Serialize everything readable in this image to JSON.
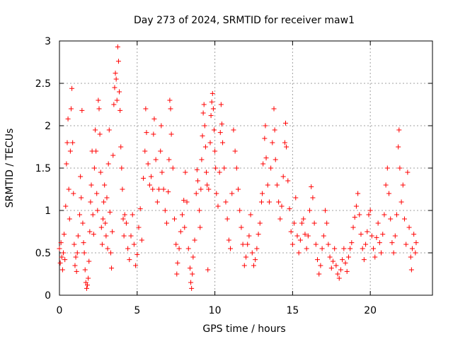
{
  "chart_data": {
    "type": "scatter",
    "title": "Day 273 of 2024, SRMTID for receiver maw1",
    "xlabel": "GPS time / hours",
    "ylabel": "SRMTID / TECUs",
    "xlim": [
      0,
      24
    ],
    "ylim": [
      0,
      3
    ],
    "xticks": [
      0,
      5,
      10,
      15,
      20
    ],
    "yticks": [
      0,
      0.5,
      1,
      1.5,
      2,
      2.5,
      3
    ],
    "xtick_labels": [
      "0",
      "5",
      "10",
      "15",
      "20"
    ],
    "ytick_labels": [
      "0",
      "0.5",
      "1",
      "1.5",
      "2",
      "2.5",
      "3"
    ],
    "grid": true,
    "marker": "+",
    "color": "#ff0000",
    "series": [
      {
        "name": "SRMTID",
        "points": [
          [
            0.0,
            0.55
          ],
          [
            0.05,
            0.38
          ],
          [
            0.1,
            0.62
          ],
          [
            0.15,
            0.45
          ],
          [
            0.2,
            0.3
          ],
          [
            0.25,
            0.5
          ],
          [
            0.3,
            0.72
          ],
          [
            0.35,
            0.42
          ],
          [
            0.4,
            1.05
          ],
          [
            0.45,
            1.55
          ],
          [
            0.5,
            1.8
          ],
          [
            0.55,
            2.08
          ],
          [
            0.6,
            1.25
          ],
          [
            0.65,
            0.9
          ],
          [
            0.7,
            1.7
          ],
          [
            0.75,
            2.2
          ],
          [
            0.8,
            2.44
          ],
          [
            0.85,
            1.8
          ],
          [
            0.9,
            1.2
          ],
          [
            0.95,
            0.6
          ],
          [
            1.0,
            0.35
          ],
          [
            1.05,
            0.45
          ],
          [
            1.1,
            0.28
          ],
          [
            1.15,
            0.5
          ],
          [
            1.2,
            0.7
          ],
          [
            1.3,
            0.95
          ],
          [
            1.35,
            1.4
          ],
          [
            1.4,
            1.15
          ],
          [
            1.45,
            2.18
          ],
          [
            1.5,
            0.85
          ],
          [
            1.55,
            0.62
          ],
          [
            1.6,
            0.5
          ],
          [
            1.65,
            0.3
          ],
          [
            1.7,
            0.15
          ],
          [
            1.75,
            0.08
          ],
          [
            1.8,
            0.12
          ],
          [
            1.85,
            0.2
          ],
          [
            1.9,
            0.4
          ],
          [
            1.95,
            0.75
          ],
          [
            2.0,
            1.1
          ],
          [
            2.05,
            1.3
          ],
          [
            2.1,
            1.7
          ],
          [
            2.15,
            0.95
          ],
          [
            2.2,
            0.72
          ],
          [
            2.25,
            1.5
          ],
          [
            2.3,
            1.95
          ],
          [
            2.35,
            1.7
          ],
          [
            2.4,
            1.2
          ],
          [
            2.45,
            1.0
          ],
          [
            2.5,
            2.3
          ],
          [
            2.55,
            2.2
          ],
          [
            2.6,
            1.9
          ],
          [
            2.65,
            1.45
          ],
          [
            2.7,
            0.8
          ],
          [
            2.75,
            0.6
          ],
          [
            2.8,
            0.9
          ],
          [
            2.85,
            1.1
          ],
          [
            2.9,
            1.3
          ],
          [
            2.95,
            0.85
          ],
          [
            3.0,
            0.7
          ],
          [
            3.05,
            1.15
          ],
          [
            3.1,
            0.55
          ],
          [
            3.15,
            1.55
          ],
          [
            3.2,
            1.95
          ],
          [
            3.25,
            0.98
          ],
          [
            3.3,
            0.5
          ],
          [
            3.35,
            0.32
          ],
          [
            3.4,
            0.75
          ],
          [
            3.45,
            1.65
          ],
          [
            3.5,
            2.25
          ],
          [
            3.55,
            2.45
          ],
          [
            3.6,
            2.62
          ],
          [
            3.65,
            2.55
          ],
          [
            3.7,
            2.3
          ],
          [
            3.75,
            2.93
          ],
          [
            3.8,
            2.76
          ],
          [
            3.85,
            2.4
          ],
          [
            3.9,
            2.18
          ],
          [
            3.95,
            1.75
          ],
          [
            4.0,
            1.5
          ],
          [
            4.05,
            1.25
          ],
          [
            4.1,
            0.9
          ],
          [
            4.15,
            0.7
          ],
          [
            4.2,
            0.95
          ],
          [
            4.3,
            0.85
          ],
          [
            4.4,
            0.55
          ],
          [
            4.5,
            0.42
          ],
          [
            4.6,
            0.7
          ],
          [
            4.7,
            0.95
          ],
          [
            4.8,
            0.6
          ],
          [
            4.9,
            0.35
          ],
          [
            5.0,
            0.48
          ],
          [
            5.1,
            0.8
          ],
          [
            5.2,
            1.02
          ],
          [
            5.3,
            0.65
          ],
          [
            5.4,
            1.38
          ],
          [
            5.5,
            1.7
          ],
          [
            5.55,
            2.2
          ],
          [
            5.6,
            1.92
          ],
          [
            5.7,
            1.55
          ],
          [
            5.8,
            1.3
          ],
          [
            5.9,
            1.4
          ],
          [
            6.0,
            1.25
          ],
          [
            6.05,
            1.9
          ],
          [
            6.1,
            2.08
          ],
          [
            6.2,
            1.6
          ],
          [
            6.3,
            1.1
          ],
          [
            6.4,
            1.25
          ],
          [
            6.5,
            1.7
          ],
          [
            6.55,
            2.0
          ],
          [
            6.6,
            1.45
          ],
          [
            6.7,
            1.25
          ],
          [
            6.8,
            1.0
          ],
          [
            6.9,
            0.85
          ],
          [
            7.0,
            1.22
          ],
          [
            7.05,
            1.6
          ],
          [
            7.1,
            2.3
          ],
          [
            7.15,
            2.2
          ],
          [
            7.2,
            1.9
          ],
          [
            7.3,
            1.5
          ],
          [
            7.4,
            0.9
          ],
          [
            7.5,
            0.6
          ],
          [
            7.55,
            0.25
          ],
          [
            7.6,
            0.38
          ],
          [
            7.7,
            0.55
          ],
          [
            7.8,
            0.75
          ],
          [
            7.9,
            0.95
          ],
          [
            8.0,
            1.12
          ],
          [
            8.05,
            0.8
          ],
          [
            8.1,
            1.45
          ],
          [
            8.2,
            1.1
          ],
          [
            8.3,
            0.55
          ],
          [
            8.4,
            0.32
          ],
          [
            8.45,
            0.15
          ],
          [
            8.5,
            0.08
          ],
          [
            8.55,
            0.25
          ],
          [
            8.6,
            0.45
          ],
          [
            8.7,
            0.65
          ],
          [
            8.8,
            1.2
          ],
          [
            8.85,
            1.48
          ],
          [
            8.9,
            1.35
          ],
          [
            9.0,
            1.0
          ],
          [
            9.05,
            0.8
          ],
          [
            9.1,
            1.25
          ],
          [
            9.15,
            1.6
          ],
          [
            9.2,
            1.88
          ],
          [
            9.25,
            2.15
          ],
          [
            9.3,
            2.25
          ],
          [
            9.35,
            2.0
          ],
          [
            9.4,
            1.75
          ],
          [
            9.45,
            1.45
          ],
          [
            9.5,
            1.3
          ],
          [
            9.55,
            0.3
          ],
          [
            9.6,
            1.25
          ],
          [
            9.7,
            1.8
          ],
          [
            9.75,
            2.12
          ],
          [
            9.8,
            2.28
          ],
          [
            9.85,
            2.38
          ],
          [
            9.9,
            2.2
          ],
          [
            9.95,
            1.95
          ],
          [
            10.0,
            1.7
          ],
          [
            10.05,
            1.5
          ],
          [
            10.1,
            1.2
          ],
          [
            10.2,
            1.05
          ],
          [
            10.3,
            1.45
          ],
          [
            10.35,
            1.92
          ],
          [
            10.4,
            2.25
          ],
          [
            10.45,
            2.02
          ],
          [
            10.5,
            1.8
          ],
          [
            10.6,
            1.5
          ],
          [
            10.7,
            1.1
          ],
          [
            10.8,
            0.9
          ],
          [
            10.9,
            0.65
          ],
          [
            11.0,
            0.55
          ],
          [
            11.1,
            1.2
          ],
          [
            11.2,
            1.95
          ],
          [
            11.3,
            1.7
          ],
          [
            11.4,
            1.5
          ],
          [
            11.5,
            1.25
          ],
          [
            11.6,
            1.0
          ],
          [
            11.7,
            0.8
          ],
          [
            11.8,
            0.6
          ],
          [
            11.9,
            0.35
          ],
          [
            12.0,
            0.45
          ],
          [
            12.1,
            0.6
          ],
          [
            12.2,
            0.7
          ],
          [
            12.3,
            0.95
          ],
          [
            12.4,
            0.5
          ],
          [
            12.5,
            0.35
          ],
          [
            12.6,
            0.42
          ],
          [
            12.7,
            0.55
          ],
          [
            12.8,
            0.72
          ],
          [
            12.9,
            0.85
          ],
          [
            13.0,
            1.1
          ],
          [
            13.05,
            1.2
          ],
          [
            13.1,
            1.55
          ],
          [
            13.2,
            1.85
          ],
          [
            13.25,
            2.0
          ],
          [
            13.3,
            1.62
          ],
          [
            13.4,
            1.3
          ],
          [
            13.5,
            1.1
          ],
          [
            13.6,
            1.5
          ],
          [
            13.7,
            1.8
          ],
          [
            13.8,
            2.2
          ],
          [
            13.85,
            1.95
          ],
          [
            13.9,
            1.6
          ],
          [
            14.0,
            1.3
          ],
          [
            14.1,
            1.1
          ],
          [
            14.2,
            0.9
          ],
          [
            14.3,
            1.05
          ],
          [
            14.4,
            1.4
          ],
          [
            14.5,
            1.8
          ],
          [
            14.55,
            2.03
          ],
          [
            14.6,
            1.75
          ],
          [
            14.7,
            1.35
          ],
          [
            14.8,
            1.02
          ],
          [
            14.9,
            0.75
          ],
          [
            15.0,
            0.6
          ],
          [
            15.1,
            0.85
          ],
          [
            15.2,
            1.15
          ],
          [
            15.3,
            0.7
          ],
          [
            15.4,
            0.5
          ],
          [
            15.5,
            0.65
          ],
          [
            15.6,
            0.85
          ],
          [
            15.7,
            0.9
          ],
          [
            15.8,
            0.72
          ],
          [
            15.9,
            0.55
          ],
          [
            16.0,
            0.7
          ],
          [
            16.1,
            1.0
          ],
          [
            16.2,
            1.28
          ],
          [
            16.3,
            1.15
          ],
          [
            16.4,
            0.85
          ],
          [
            16.5,
            0.6
          ],
          [
            16.6,
            0.42
          ],
          [
            16.7,
            0.25
          ],
          [
            16.8,
            0.35
          ],
          [
            16.9,
            0.55
          ],
          [
            17.0,
            0.7
          ],
          [
            17.1,
            1.0
          ],
          [
            17.2,
            0.85
          ],
          [
            17.3,
            0.6
          ],
          [
            17.4,
            0.45
          ],
          [
            17.5,
            0.32
          ],
          [
            17.6,
            0.4
          ],
          [
            17.7,
            0.55
          ],
          [
            17.8,
            0.35
          ],
          [
            17.9,
            0.25
          ],
          [
            18.0,
            0.2
          ],
          [
            18.1,
            0.3
          ],
          [
            18.2,
            0.42
          ],
          [
            18.3,
            0.55
          ],
          [
            18.4,
            0.38
          ],
          [
            18.5,
            0.28
          ],
          [
            18.6,
            0.45
          ],
          [
            18.7,
            0.55
          ],
          [
            18.8,
            0.62
          ],
          [
            18.9,
            0.8
          ],
          [
            19.0,
            0.92
          ],
          [
            19.1,
            1.05
          ],
          [
            19.2,
            1.2
          ],
          [
            19.3,
            0.95
          ],
          [
            19.4,
            0.72
          ],
          [
            19.5,
            0.55
          ],
          [
            19.6,
            0.42
          ],
          [
            19.7,
            0.6
          ],
          [
            19.8,
            0.75
          ],
          [
            19.9,
            0.95
          ],
          [
            20.0,
            1.0
          ],
          [
            20.1,
            0.7
          ],
          [
            20.2,
            0.55
          ],
          [
            20.3,
            0.45
          ],
          [
            20.4,
            0.68
          ],
          [
            20.5,
            0.85
          ],
          [
            20.6,
            0.62
          ],
          [
            20.7,
            0.5
          ],
          [
            20.8,
            0.72
          ],
          [
            20.9,
            0.95
          ],
          [
            21.0,
            1.3
          ],
          [
            21.1,
            1.5
          ],
          [
            21.2,
            1.2
          ],
          [
            21.3,
            0.9
          ],
          [
            21.4,
            0.62
          ],
          [
            21.5,
            0.5
          ],
          [
            21.6,
            0.7
          ],
          [
            21.7,
            0.95
          ],
          [
            21.8,
            1.75
          ],
          [
            21.85,
            1.95
          ],
          [
            21.9,
            1.5
          ],
          [
            22.0,
            1.1
          ],
          [
            22.1,
            1.3
          ],
          [
            22.2,
            0.9
          ],
          [
            22.3,
            0.6
          ],
          [
            22.4,
            1.45
          ],
          [
            22.5,
            0.8
          ],
          [
            22.6,
            0.45
          ],
          [
            22.65,
            0.3
          ],
          [
            22.7,
            0.55
          ],
          [
            22.8,
            0.72
          ],
          [
            22.9,
            0.5
          ],
          [
            22.95,
            0.62
          ]
        ]
      }
    ]
  }
}
